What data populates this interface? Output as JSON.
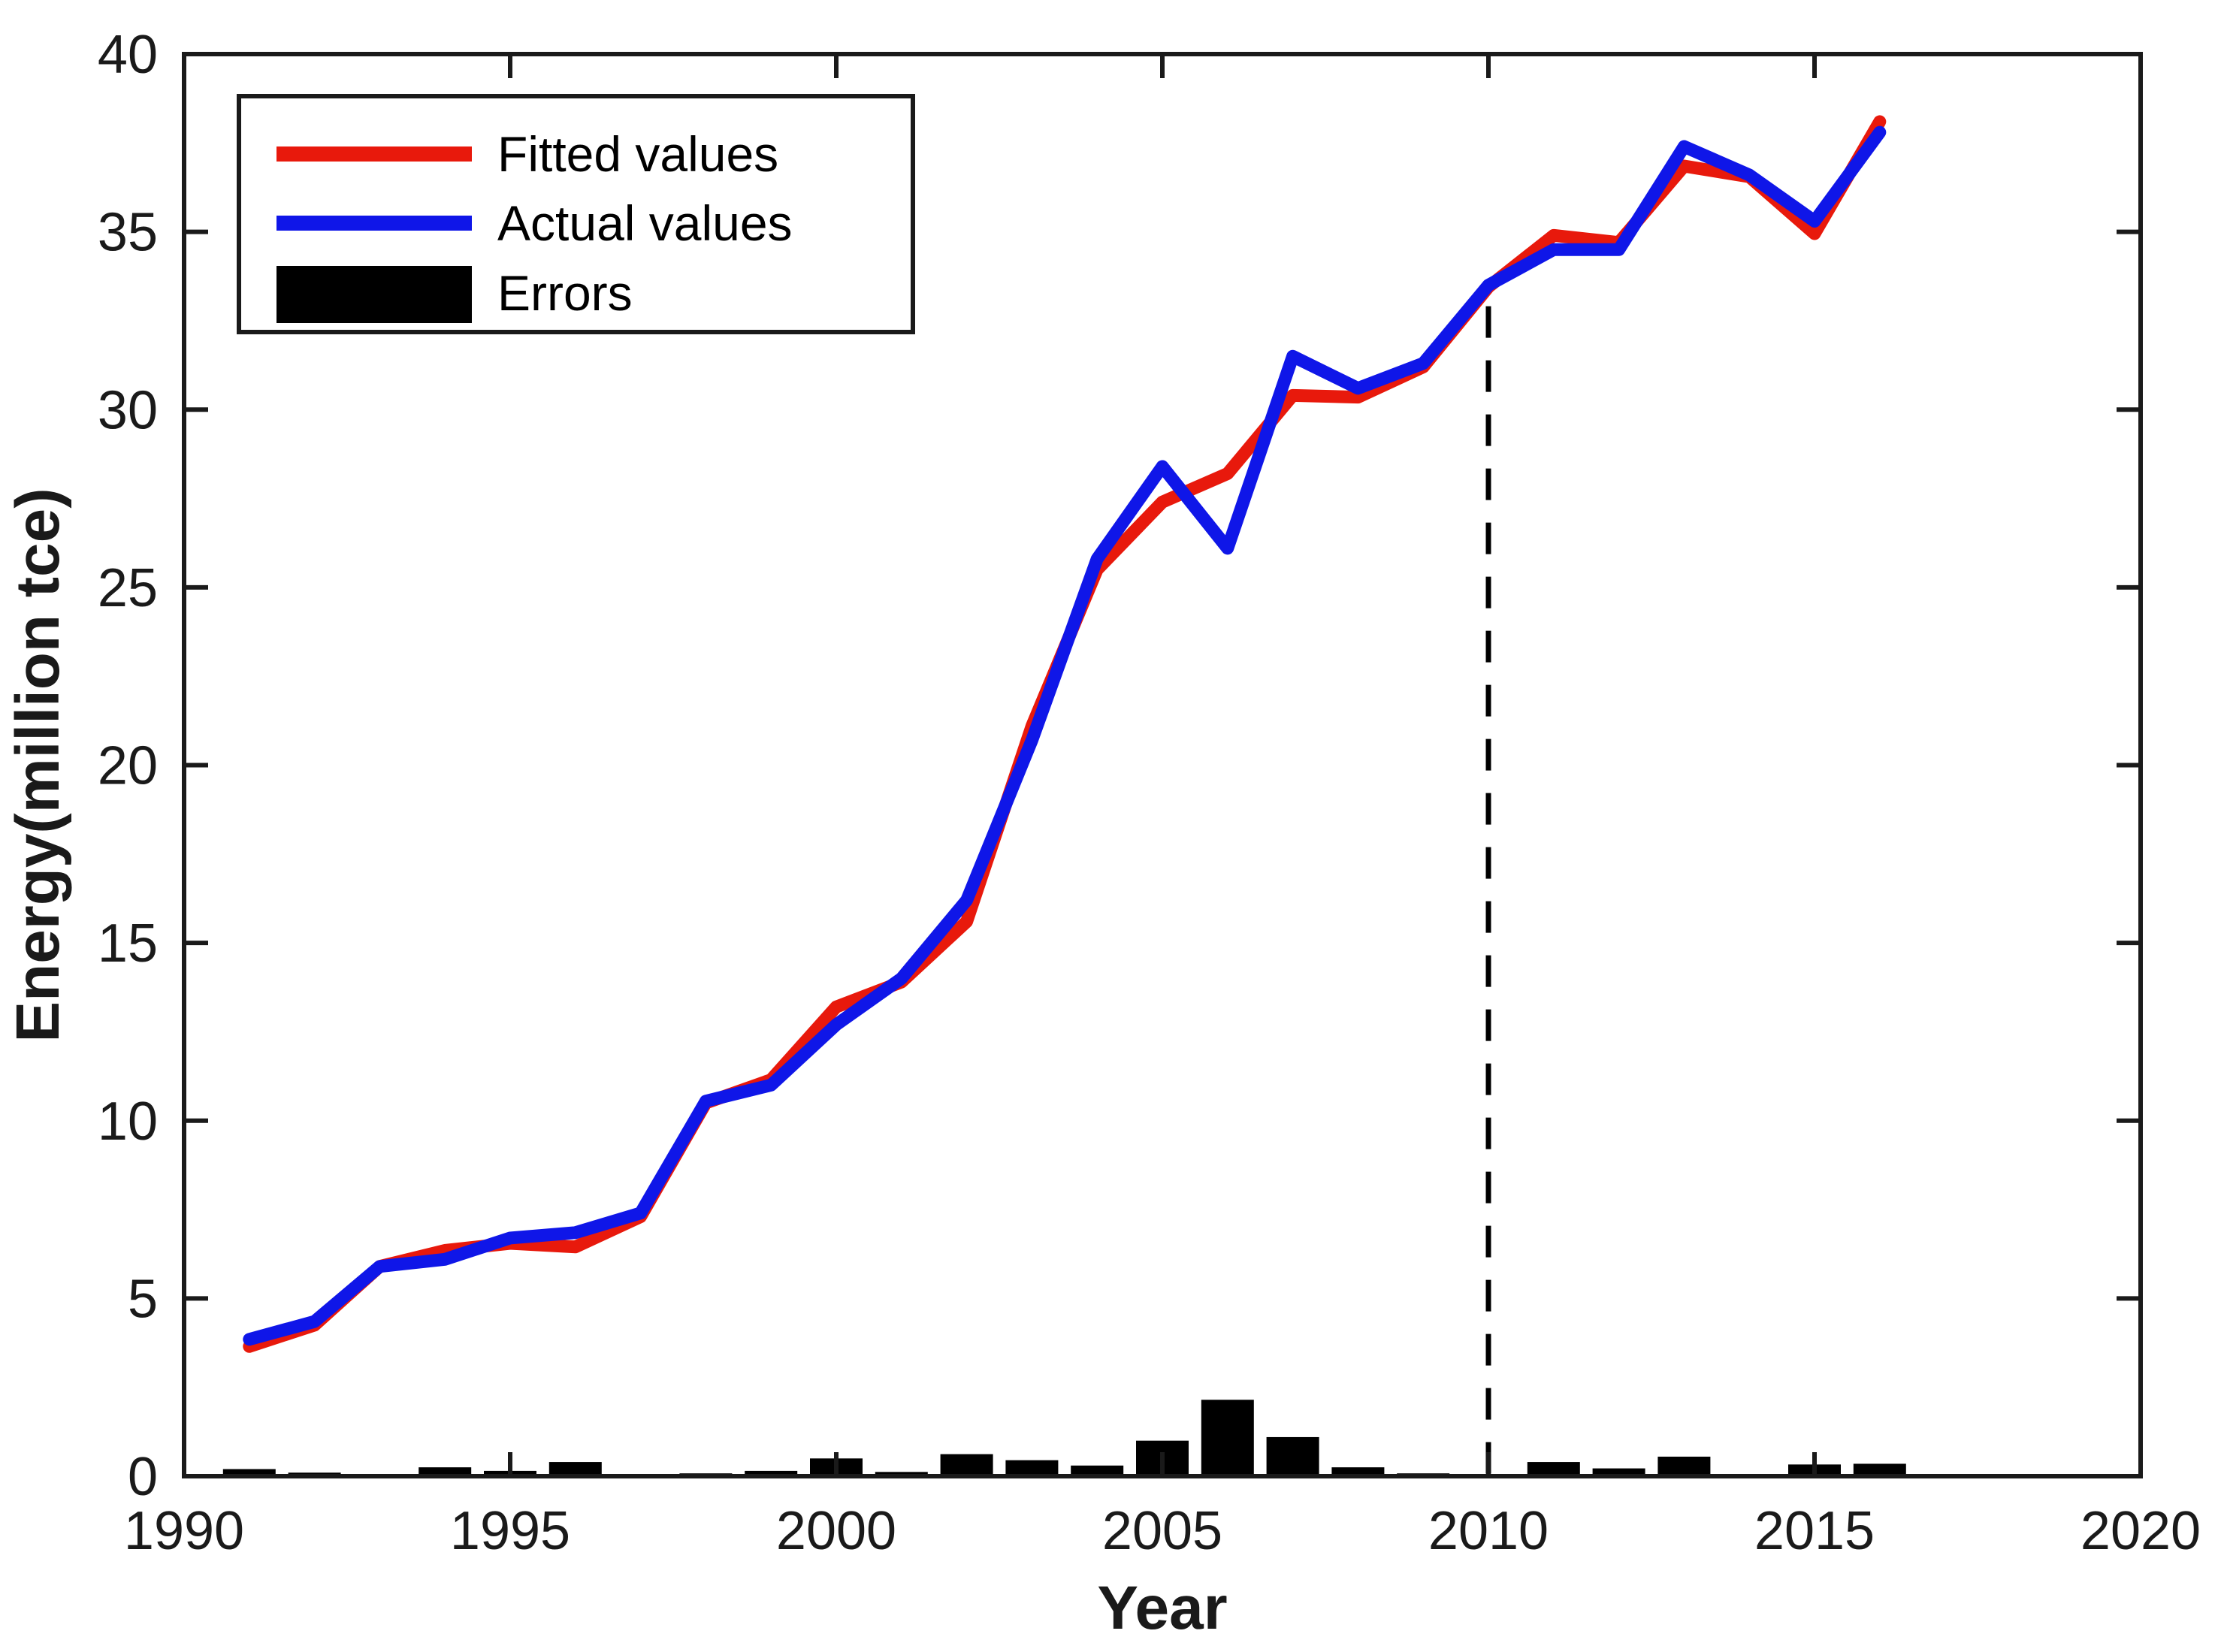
{
  "figure": {
    "background": "#ffffff",
    "frame_color": "#1a1a1a",
    "text_color": "#1a1a1a"
  },
  "chart_data": {
    "type": "line",
    "title": "",
    "xlabel": "Year",
    "ylabel": "Energy(million tce)",
    "xlim": [
      1990,
      2020
    ],
    "ylim": [
      0,
      40
    ],
    "x_ticks": [
      1990,
      1995,
      2000,
      2005,
      2010,
      2015,
      2020
    ],
    "y_ticks": [
      0,
      5,
      10,
      15,
      20,
      25,
      30,
      35,
      40
    ],
    "grid": false,
    "legend_position": "top-left",
    "divider_year": 2010,
    "divider_style": "dashed",
    "years": [
      1991,
      1992,
      1993,
      1994,
      1995,
      1996,
      1997,
      1998,
      1999,
      2000,
      2001,
      2002,
      2003,
      2004,
      2005,
      2006,
      2007,
      2008,
      2009,
      2010,
      2011,
      2012,
      2013,
      2014,
      2015,
      2016
    ],
    "series": [
      {
        "name": "Fitted values",
        "kind": "line",
        "color": "#e8190c",
        "values": [
          3.65,
          4.25,
          5.9,
          6.35,
          6.55,
          6.45,
          7.3,
          10.5,
          11.15,
          13.2,
          13.9,
          15.6,
          21.1,
          25.5,
          27.4,
          28.2,
          30.4,
          30.35,
          31.2,
          33.45,
          34.9,
          34.7,
          36.85,
          36.55,
          34.95,
          38.1
        ]
      },
      {
        "name": "Actual values",
        "kind": "line",
        "color": "#0f16e8",
        "values": [
          3.85,
          4.35,
          5.9,
          6.1,
          6.7,
          6.85,
          7.4,
          10.55,
          11.0,
          12.7,
          14.0,
          16.2,
          20.7,
          25.8,
          28.4,
          26.1,
          31.5,
          30.6,
          31.3,
          33.5,
          34.5,
          34.5,
          37.4,
          36.6,
          35.3,
          37.8
        ]
      },
      {
        "name": "Errors",
        "kind": "bar",
        "color": "#000000",
        "values": [
          0.2,
          0.1,
          0.05,
          0.25,
          0.15,
          0.4,
          0.05,
          0.08,
          0.15,
          0.5,
          0.12,
          0.62,
          0.45,
          0.3,
          1.0,
          2.15,
          1.1,
          0.25,
          0.08,
          0.05,
          0.4,
          0.22,
          0.55,
          0.05,
          0.33,
          0.35
        ]
      }
    ],
    "legend": [
      {
        "label": "Fitted values",
        "swatch": "line",
        "color": "#e8190c"
      },
      {
        "label": "Actual values",
        "swatch": "line",
        "color": "#0f16e8"
      },
      {
        "label": "Errors",
        "swatch": "rect",
        "color": "#000000"
      }
    ]
  }
}
